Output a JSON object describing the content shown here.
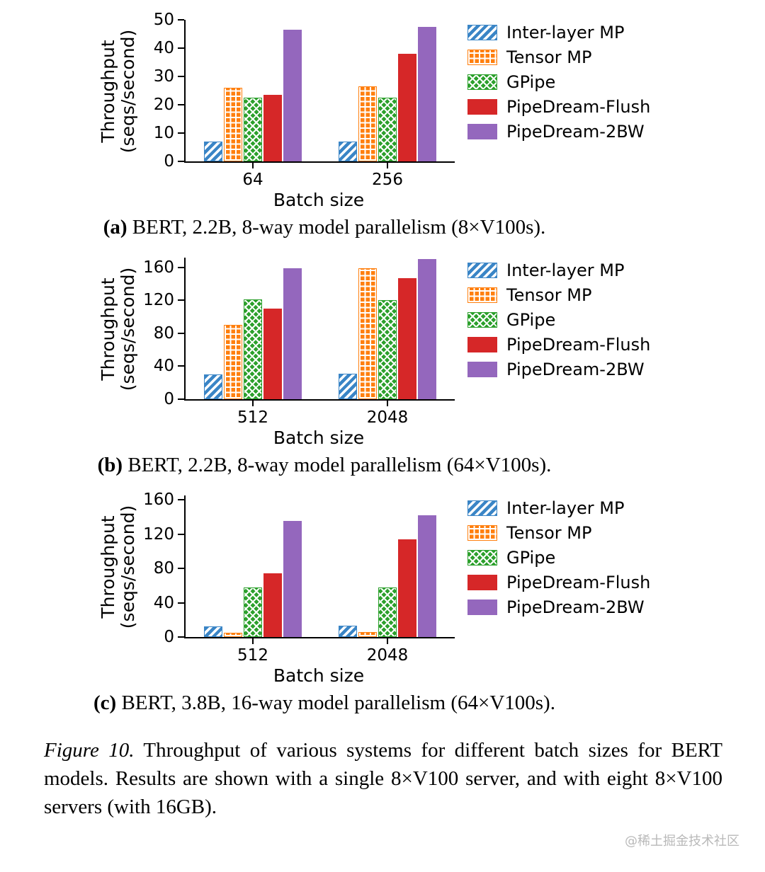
{
  "page": {
    "background": "#ffffff",
    "watermark": "@稀土掘金技术社区"
  },
  "caption": {
    "label": "Figure 10.",
    "text": " Throughput of various systems for different batch sizes for BERT models. Results are shown with a single 8×V100 server, and with eight 8×V100 servers (with 16GB)."
  },
  "colors": {
    "inter_layer_mp": "#3a85c6",
    "tensor_mp": "#ff7f0e",
    "gpipe": "#2ca02c",
    "pipedream_flush": "#d62728",
    "pipedream_2bw": "#9467bd"
  },
  "chart_data": [
    {
      "id": "a",
      "type": "bar",
      "subtitle_label": "(a)",
      "subtitle_text": " BERT, 2.2B, 8-way model parallelism (8×V100s).",
      "xlabel": "Batch size",
      "ylabel_line1": "Throughput",
      "ylabel_line2": "(seqs/second)",
      "categories": [
        "64",
        "256"
      ],
      "ylim": [
        0,
        50
      ],
      "yticks": [
        0,
        10,
        20,
        30,
        40,
        50
      ],
      "grid": false,
      "legend_position": "right",
      "series": [
        {
          "name": "Inter-layer MP",
          "pattern": "diagonal",
          "color": "#3a85c6",
          "values": [
            7,
            7
          ]
        },
        {
          "name": "Tensor MP",
          "pattern": "grid",
          "color": "#ff7f0e",
          "values": [
            26,
            26.5
          ]
        },
        {
          "name": "GPipe",
          "pattern": "cross",
          "color": "#2ca02c",
          "values": [
            22.5,
            22.5
          ]
        },
        {
          "name": "PipeDream-Flush",
          "pattern": "solid",
          "color": "#d62728",
          "values": [
            23.5,
            38
          ]
        },
        {
          "name": "PipeDream-2BW",
          "pattern": "solid",
          "color": "#9467bd",
          "values": [
            46.5,
            47.5
          ]
        }
      ]
    },
    {
      "id": "b",
      "type": "bar",
      "subtitle_label": "(b)",
      "subtitle_text": " BERT, 2.2B, 8-way model parallelism (64×V100s).",
      "xlabel": "Batch size",
      "ylabel_line1": "Throughput",
      "ylabel_line2": "(seqs/second)",
      "categories": [
        "512",
        "2048"
      ],
      "ylim": [
        0,
        172
      ],
      "yticks": [
        0,
        40,
        80,
        120,
        160
      ],
      "grid": false,
      "legend_position": "right",
      "series": [
        {
          "name": "Inter-layer MP",
          "pattern": "diagonal",
          "color": "#3a85c6",
          "values": [
            30,
            31
          ]
        },
        {
          "name": "Tensor MP",
          "pattern": "grid",
          "color": "#ff7f0e",
          "values": [
            90,
            159
          ]
        },
        {
          "name": "GPipe",
          "pattern": "cross",
          "color": "#2ca02c",
          "values": [
            121,
            120
          ]
        },
        {
          "name": "PipeDream-Flush",
          "pattern": "solid",
          "color": "#d62728",
          "values": [
            110,
            147
          ]
        },
        {
          "name": "PipeDream-2BW",
          "pattern": "solid",
          "color": "#9467bd",
          "values": [
            159,
            170
          ]
        }
      ]
    },
    {
      "id": "c",
      "type": "bar",
      "subtitle_label": "(c)",
      "subtitle_text": " BERT, 3.8B, 16-way model parallelism (64×V100s).",
      "xlabel": "Batch size",
      "ylabel_line1": "Throughput",
      "ylabel_line2": "(seqs/second)",
      "categories": [
        "512",
        "2048"
      ],
      "ylim": [
        0,
        165
      ],
      "yticks": [
        0,
        40,
        80,
        120,
        160
      ],
      "grid": false,
      "legend_position": "right",
      "series": [
        {
          "name": "Inter-layer MP",
          "pattern": "diagonal",
          "color": "#3a85c6",
          "values": [
            12,
            13
          ]
        },
        {
          "name": "Tensor MP",
          "pattern": "grid",
          "color": "#ff7f0e",
          "values": [
            5,
            6
          ]
        },
        {
          "name": "GPipe",
          "pattern": "cross",
          "color": "#2ca02c",
          "values": [
            58,
            58
          ]
        },
        {
          "name": "PipeDream-Flush",
          "pattern": "solid",
          "color": "#d62728",
          "values": [
            74,
            114
          ]
        },
        {
          "name": "PipeDream-2BW",
          "pattern": "solid",
          "color": "#9467bd",
          "values": [
            135,
            142
          ]
        }
      ]
    }
  ]
}
